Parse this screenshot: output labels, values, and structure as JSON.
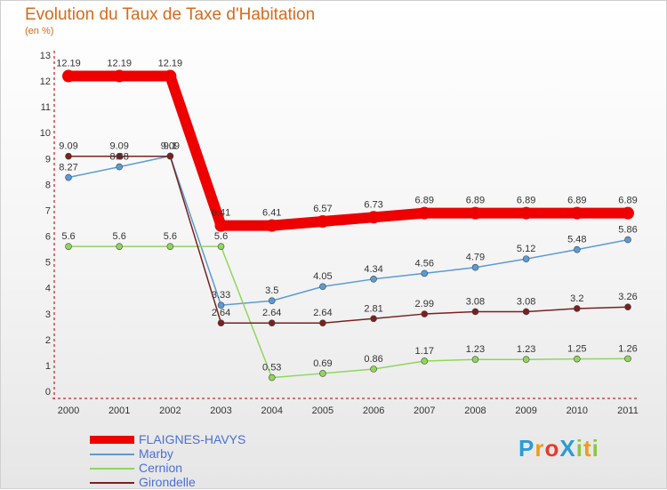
{
  "chart_data": {
    "type": "line",
    "title": "Evolution du Taux de Taxe d'Habitation",
    "unit": "(en %)",
    "x": [
      "2000",
      "2001",
      "2002",
      "2003",
      "2004",
      "2005",
      "2006",
      "2007",
      "2008",
      "2009",
      "2010",
      "2011"
    ],
    "ylim": [
      0,
      13
    ],
    "yticks": [
      0,
      1,
      2,
      3,
      4,
      5,
      6,
      7,
      8,
      9,
      10,
      11,
      12,
      13
    ],
    "grid": false,
    "legend_position": "bottom-left",
    "series": [
      {
        "name": "FLAIGNES-HAVYS",
        "color": "#ee0000",
        "emphasis": true,
        "values": [
          12.19,
          12.19,
          12.19,
          6.41,
          6.41,
          6.57,
          6.73,
          6.89,
          6.89,
          6.89,
          6.89,
          6.89
        ],
        "labels": [
          "12.19",
          "12.19",
          "12.19",
          "6.41",
          "6.41",
          "6.57",
          "6.73",
          "6.89",
          "6.89",
          "6.89",
          "6.89",
          "6.89"
        ]
      },
      {
        "name": "Marby",
        "color": "#5b9bd5",
        "values": [
          8.27,
          8.68,
          9.1,
          3.33,
          3.5,
          4.05,
          4.34,
          4.56,
          4.79,
          5.12,
          5.48,
          5.86
        ],
        "labels": [
          "8.27",
          "8.68",
          "9.1",
          "3.33",
          "3.5",
          "4.05",
          "4.34",
          "4.56",
          "4.79",
          "5.12",
          "5.48",
          "5.86"
        ]
      },
      {
        "name": "Cernion",
        "color": "#8fd65a",
        "values": [
          5.6,
          5.6,
          5.6,
          5.6,
          0.53,
          0.69,
          0.86,
          1.17,
          1.23,
          1.23,
          1.25,
          1.26
        ],
        "labels": [
          "5.6",
          "5.6",
          "5.6",
          "5.6",
          "0.53",
          "0.69",
          "0.86",
          "1.17",
          "1.23",
          "1.23",
          "1.25",
          "1.26"
        ]
      },
      {
        "name": "Girondelle",
        "color": "#7a2020",
        "values": [
          9.09,
          9.09,
          9.09,
          2.64,
          2.64,
          2.64,
          2.81,
          2.99,
          3.08,
          3.08,
          3.2,
          3.26
        ],
        "labels": [
          "9.09",
          "9.09",
          "9.09",
          "2.64",
          "2.64",
          "2.64",
          "2.81",
          "2.99",
          "3.08",
          "3.08",
          "3.2",
          "3.26"
        ]
      }
    ]
  },
  "logo": {
    "text": "ProXiti",
    "colors": [
      "#2a9bd6",
      "#f29a1a",
      "#e83b2a",
      "#2a9bd6",
      "#8cc63f",
      "#f29a1a",
      "#8cc63f"
    ]
  }
}
